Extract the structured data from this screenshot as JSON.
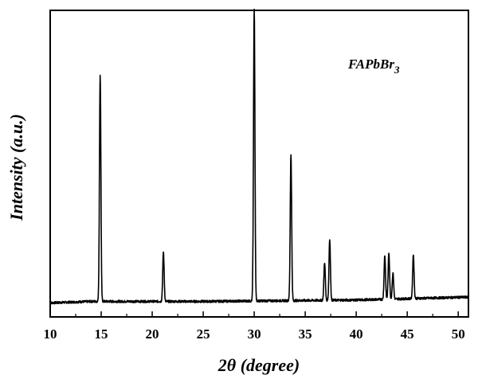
{
  "chart_data": {
    "type": "line",
    "title": "",
    "xlabel": "2θ (degree)",
    "ylabel": "Intensity (a.u.)",
    "annotation": {
      "text": "FAPbBr",
      "subscript": "3"
    },
    "xlim": [
      10,
      51
    ],
    "ylim": [
      0,
      1
    ],
    "x_ticks": [
      10,
      15,
      20,
      25,
      30,
      35,
      40,
      45,
      50
    ],
    "x_tick_labels": [
      "10",
      "15",
      "20",
      "25",
      "30",
      "35",
      "40",
      "45",
      "50"
    ],
    "y_ticks_shown": false,
    "grid": false,
    "legend": "none",
    "series": [
      {
        "baseline": [
          [
            10,
            0.04
          ],
          [
            14,
            0.045
          ],
          [
            25,
            0.045
          ],
          [
            40,
            0.05
          ],
          [
            51,
            0.06
          ]
        ],
        "peaks": [
          {
            "x": 14.9,
            "height": 0.78
          },
          {
            "x": 21.1,
            "height": 0.17
          },
          {
            "x": 30.0,
            "height": 1.0
          },
          {
            "x": 33.6,
            "height": 0.5
          },
          {
            "x": 36.9,
            "height": 0.13
          },
          {
            "x": 37.4,
            "height": 0.21
          },
          {
            "x": 42.8,
            "height": 0.15
          },
          {
            "x": 43.2,
            "height": 0.16
          },
          {
            "x": 43.6,
            "height": 0.09
          },
          {
            "x": 45.6,
            "height": 0.15
          }
        ]
      }
    ]
  }
}
